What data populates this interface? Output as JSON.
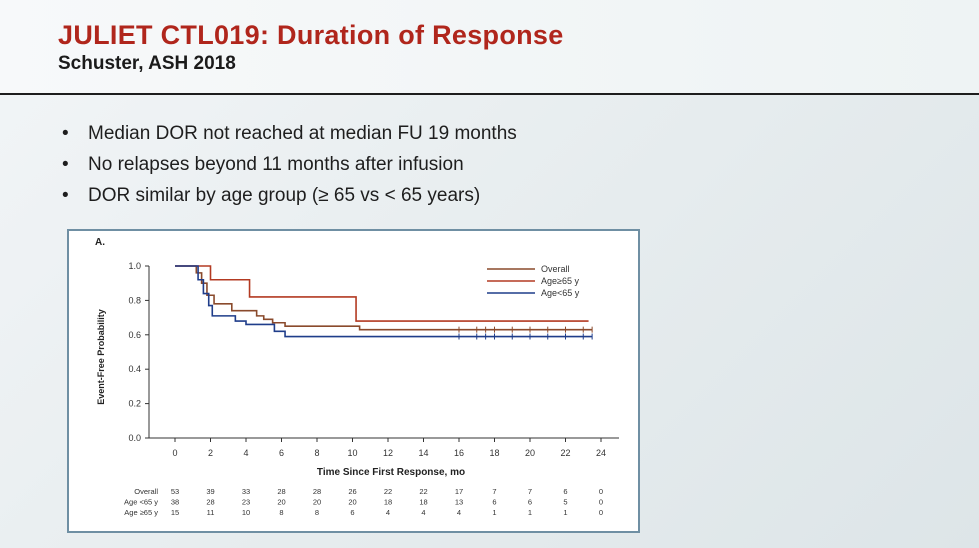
{
  "slide": {
    "title": "JULIET CTL019: Duration of Response",
    "subtitle": "Schuster, ASH 2018",
    "bullets": [
      "Median DOR not reached at median FU 19 months",
      "No relapses beyond 11 months after infusion",
      "DOR similar by age group (≥ 65 vs < 65 years)"
    ]
  },
  "chart_data": {
    "type": "line",
    "panel_label": "A.",
    "xlabel": "Time Since First Response, mo",
    "ylabel": "Event-Free Probability",
    "xlim": [
      0,
      24
    ],
    "ylim": [
      0,
      1.0
    ],
    "x_ticks": [
      0,
      2,
      4,
      6,
      8,
      10,
      12,
      14,
      16,
      18,
      20,
      22,
      24
    ],
    "y_ticks": [
      "0.0",
      "0.2",
      "0.4",
      "0.6",
      "0.8",
      "1.0"
    ],
    "y_tick_values": [
      0,
      0.2,
      0.4,
      0.6,
      0.8,
      1.0
    ],
    "series": [
      {
        "name": "Overall",
        "color": "#8a4a2c",
        "steps": [
          [
            0,
            1.0
          ],
          [
            1.0,
            1.0
          ],
          [
            1.2,
            0.96
          ],
          [
            1.5,
            0.9
          ],
          [
            1.8,
            0.83
          ],
          [
            2.2,
            0.78
          ],
          [
            3.2,
            0.74
          ],
          [
            4.6,
            0.71
          ],
          [
            5.0,
            0.69
          ],
          [
            5.5,
            0.67
          ],
          [
            6.2,
            0.65
          ],
          [
            10.0,
            0.65
          ],
          [
            10.4,
            0.63
          ],
          [
            23.5,
            0.63
          ]
        ],
        "censor_x": [
          16,
          17,
          17.5,
          18,
          19,
          20,
          21,
          22,
          23,
          23.5
        ]
      },
      {
        "name": "Age ≥65 y",
        "color": "#b33a22",
        "steps": [
          [
            0,
            1.0
          ],
          [
            1.9,
            1.0
          ],
          [
            2.0,
            0.92
          ],
          [
            4.1,
            0.92
          ],
          [
            4.2,
            0.82
          ],
          [
            10.0,
            0.82
          ],
          [
            10.2,
            0.68
          ],
          [
            23.3,
            0.68
          ]
        ],
        "censor_x": []
      },
      {
        "name": "Age <65 y",
        "color": "#1f3d8a",
        "steps": [
          [
            0,
            1.0
          ],
          [
            1.0,
            1.0
          ],
          [
            1.3,
            0.92
          ],
          [
            1.6,
            0.84
          ],
          [
            1.9,
            0.77
          ],
          [
            2.1,
            0.71
          ],
          [
            3.4,
            0.68
          ],
          [
            4.0,
            0.66
          ],
          [
            5.6,
            0.62
          ],
          [
            6.2,
            0.59
          ],
          [
            23.5,
            0.59
          ]
        ],
        "censor_x": [
          16,
          17,
          17.5,
          18,
          19,
          20,
          21,
          22,
          23,
          23.5
        ]
      }
    ],
    "legend": [
      "Overall",
      "Age≥65 y",
      "Age<65 y"
    ],
    "legend_position": "top-right",
    "at_risk": {
      "labels": [
        "Overall",
        "Age <65 y",
        "Age ≥65 y"
      ],
      "rows": [
        [
          "53",
          "39",
          "33",
          "28",
          "28",
          "26",
          "22",
          "22",
          "17",
          "7",
          "7",
          "6",
          "0"
        ],
        [
          "38",
          "28",
          "23",
          "20",
          "20",
          "20",
          "18",
          "18",
          "13",
          "6",
          "6",
          "5",
          "0"
        ],
        [
          "15",
          "11",
          "10",
          "8",
          "8",
          "6",
          "4",
          "4",
          "4",
          "1",
          "1",
          "1",
          "0"
        ]
      ]
    }
  }
}
